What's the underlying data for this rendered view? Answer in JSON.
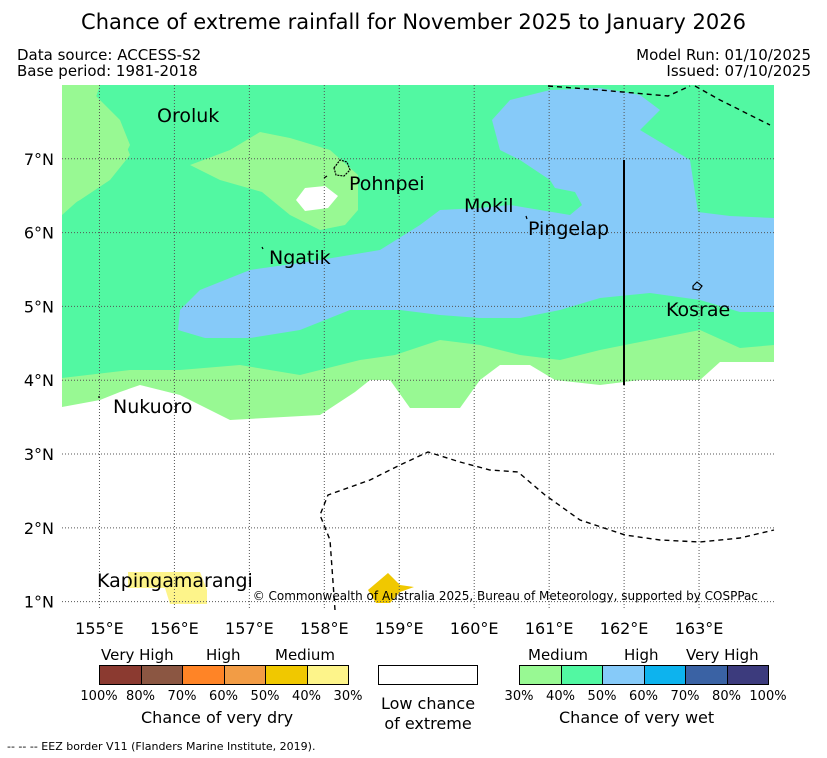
{
  "title": "Chance of extreme rainfall for November 2025 to January 2026",
  "meta": {
    "data_source": "Data source: ACCESS-S2",
    "base_period": "Base period: 1981-2018",
    "model_run": "Model Run: 01/10/2025",
    "issued": "Issued: 07/10/2025"
  },
  "map": {
    "lon_range": [
      154.5,
      164.0
    ],
    "lat_range": [
      0.9,
      8.0
    ],
    "x_ticks": [
      "155°E",
      "156°E",
      "157°E",
      "158°E",
      "159°E",
      "160°E",
      "161°E",
      "162°E",
      "163°E"
    ],
    "y_ticks": [
      "1°N",
      "2°N",
      "3°N",
      "4°N",
      "5°N",
      "6°N",
      "7°N"
    ],
    "places": {
      "oroluk": "Oroluk",
      "pohnpei": "Pohnpei",
      "mokil": "Mokil",
      "pingelap": "Pingelap",
      "ngatik": "Ngatik",
      "kosrae": "Kosrae",
      "nukuoro": "Nukuoro",
      "kapingamarangi": "Kapingamarangi"
    },
    "colors": {
      "wet_30": "#98f993",
      "wet_40": "#52f8a2",
      "wet_50": "#86caf9",
      "dry_30": "#fdf48a",
      "dry_50": "#f0c800"
    },
    "copyright": "© Commonwealth of Australia 2025, Bureau of Meteorology, supported by COSPPac"
  },
  "legend": {
    "dry": {
      "labels": [
        "Very High",
        "High",
        "Medium"
      ],
      "percents": [
        "100%",
        "80%",
        "70%",
        "60%",
        "50%",
        "40%",
        "30%"
      ],
      "colors": [
        "#8b3a30",
        "#8b5642",
        "#ff8426",
        "#f29c45",
        "#f0c800",
        "#fdf48a"
      ],
      "title": "Chance of very dry"
    },
    "low": {
      "title_line1": "Low chance",
      "title_line2": "of extreme"
    },
    "wet": {
      "labels": [
        "Medium",
        "High",
        "Very High"
      ],
      "percents": [
        "30%",
        "40%",
        "50%",
        "60%",
        "70%",
        "80%",
        "100%"
      ],
      "colors": [
        "#98f993",
        "#52f8a2",
        "#86caf9",
        "#0db3ee",
        "#3a62a4",
        "#3c3b7d"
      ],
      "title": "Chance of very wet"
    }
  },
  "eez_note": "--  --  -- EEZ border V11 (Flanders Marine Institute, 2019)."
}
